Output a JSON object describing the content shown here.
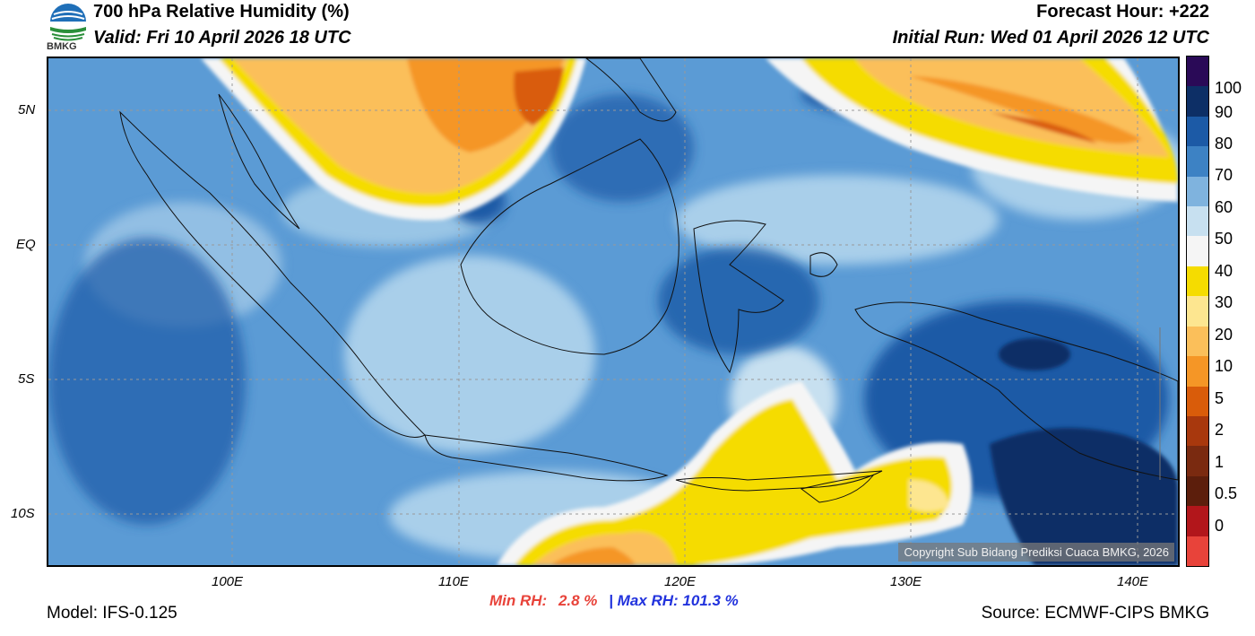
{
  "header": {
    "title": "700 hPa Relative Humidity (%)",
    "valid": "Valid: Fri 10 April 2026 18 UTC",
    "forecast_hour": "Forecast Hour: +222",
    "initial_run": "Initial Run: Wed 01 April 2026 12 UTC",
    "logo_text": "BMKG"
  },
  "axes": {
    "x_ticks": [
      "100E",
      "110E",
      "120E",
      "130E",
      "140E"
    ],
    "y_ticks": [
      "5N",
      "EQ",
      "5S",
      "10S"
    ]
  },
  "stats": {
    "min_label": "Min RH:",
    "min_value": "2.8 %",
    "separator": "|",
    "max_label": "Max RH:",
    "max_value": "101.3 %"
  },
  "footer": {
    "model": "Model: IFS-0.125",
    "source": "Source: ECMWF-CIPS BMKG",
    "copyright": "Copyright Sub Bidang Prediksi Cuaca BMKG, 2026"
  },
  "colorbar": {
    "labels": [
      "100",
      "90",
      "80",
      "70",
      "60",
      "50",
      "40",
      "30",
      "20",
      "10",
      "5",
      "2",
      "1",
      "0.5",
      "0"
    ],
    "colors": [
      "#2a0a57",
      "#0d2f66",
      "#1c5aa6",
      "#3d82c4",
      "#7fb3de",
      "#c7e0f0",
      "#f5f5f5",
      "#f5dc00",
      "#fde690",
      "#fbbf5a",
      "#f59626",
      "#d95c0a",
      "#a8380d",
      "#7a2a10",
      "#5c1e0c",
      "#b2161b",
      "#e8433a"
    ]
  },
  "colors": {
    "map_base": "#5b9bd5",
    "dark_blue": "#1c5aa6",
    "darkest_blue": "#0d2f66",
    "light_blue": "#a9cfea",
    "white_band": "#f5f5f5",
    "yellow": "#f5dc00",
    "light_orange": "#fbbf5a",
    "orange": "#f59626",
    "dark_orange": "#d95c0a",
    "min_color": "#e8433a",
    "max_color": "#2233dd"
  }
}
